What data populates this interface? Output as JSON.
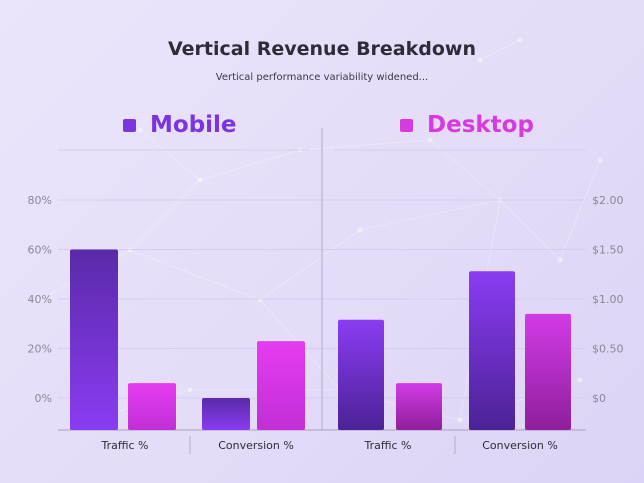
{
  "title": "Vertical Revenue Breakdown",
  "subtitle": "Vertical performance variability widened...",
  "colors": {
    "mobile": "#7a35e0",
    "desktop": "#d63ae0"
  },
  "chart_data": [
    {
      "type": "bar",
      "panel": "left",
      "categories": [
        "Traffic %",
        "Conversion %"
      ],
      "series": [
        {
          "name": "Mobile",
          "values": [
            60,
            0
          ]
        },
        {
          "name": "Desktop",
          "values": [
            6,
            23
          ]
        }
      ],
      "yticks": [
        "0%",
        "20%",
        "40%",
        "60%",
        "80%"
      ],
      "ylim": [
        0,
        80
      ]
    },
    {
      "type": "bar",
      "panel": "right",
      "categories": [
        "Traffic %",
        "Conversion %"
      ],
      "series": [
        {
          "name": "Mobile",
          "values": [
            0.79,
            1.28
          ]
        },
        {
          "name": "Desktop",
          "values": [
            0.15,
            0.85
          ]
        }
      ],
      "yticks": [
        "$0",
        "$0.50",
        "$1.00",
        "$1.50",
        "$2.00"
      ],
      "ylim": [
        0,
        2.0
      ]
    }
  ]
}
